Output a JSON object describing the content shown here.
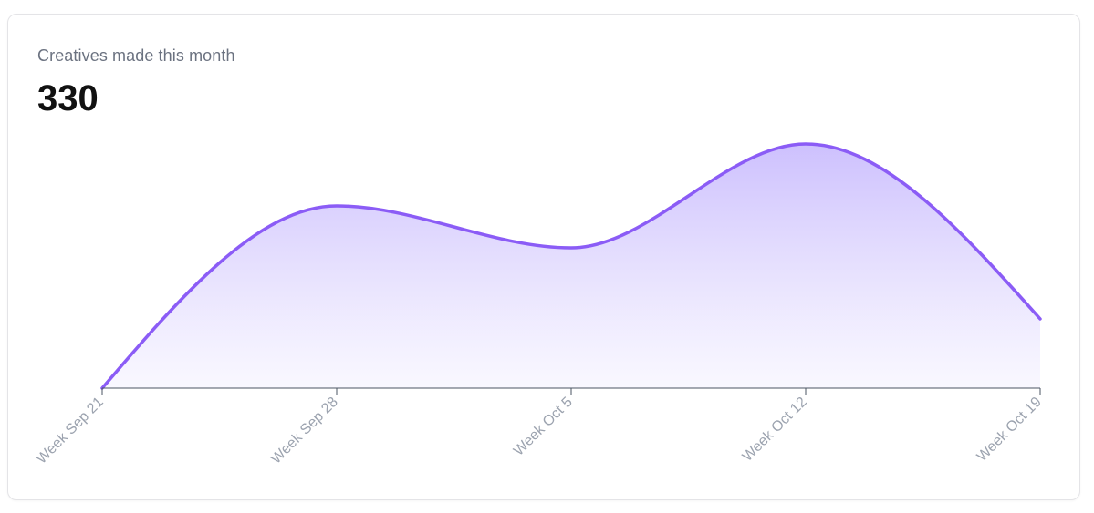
{
  "card": {
    "subtitle": "Creatives made this month",
    "value": "330"
  },
  "colors": {
    "line": "#8b5cf6",
    "fill_top": "#c4b5fd",
    "fill_bottom": "#f5f3ff",
    "axis": "#4b5563",
    "tick_label": "#9ca3af"
  },
  "chart_data": {
    "type": "area",
    "title": "Creatives made this month",
    "categories": [
      "Week Sep 21",
      "Week Sep 28",
      "Week Oct 5",
      "Week Oct 12",
      "Week Oct 19"
    ],
    "series": [
      {
        "values": [
          0,
          100,
          77,
          134,
          38
        ]
      }
    ],
    "ylim": [
      0,
      160
    ],
    "grid": false,
    "legend": "none",
    "curve": "smooth"
  }
}
